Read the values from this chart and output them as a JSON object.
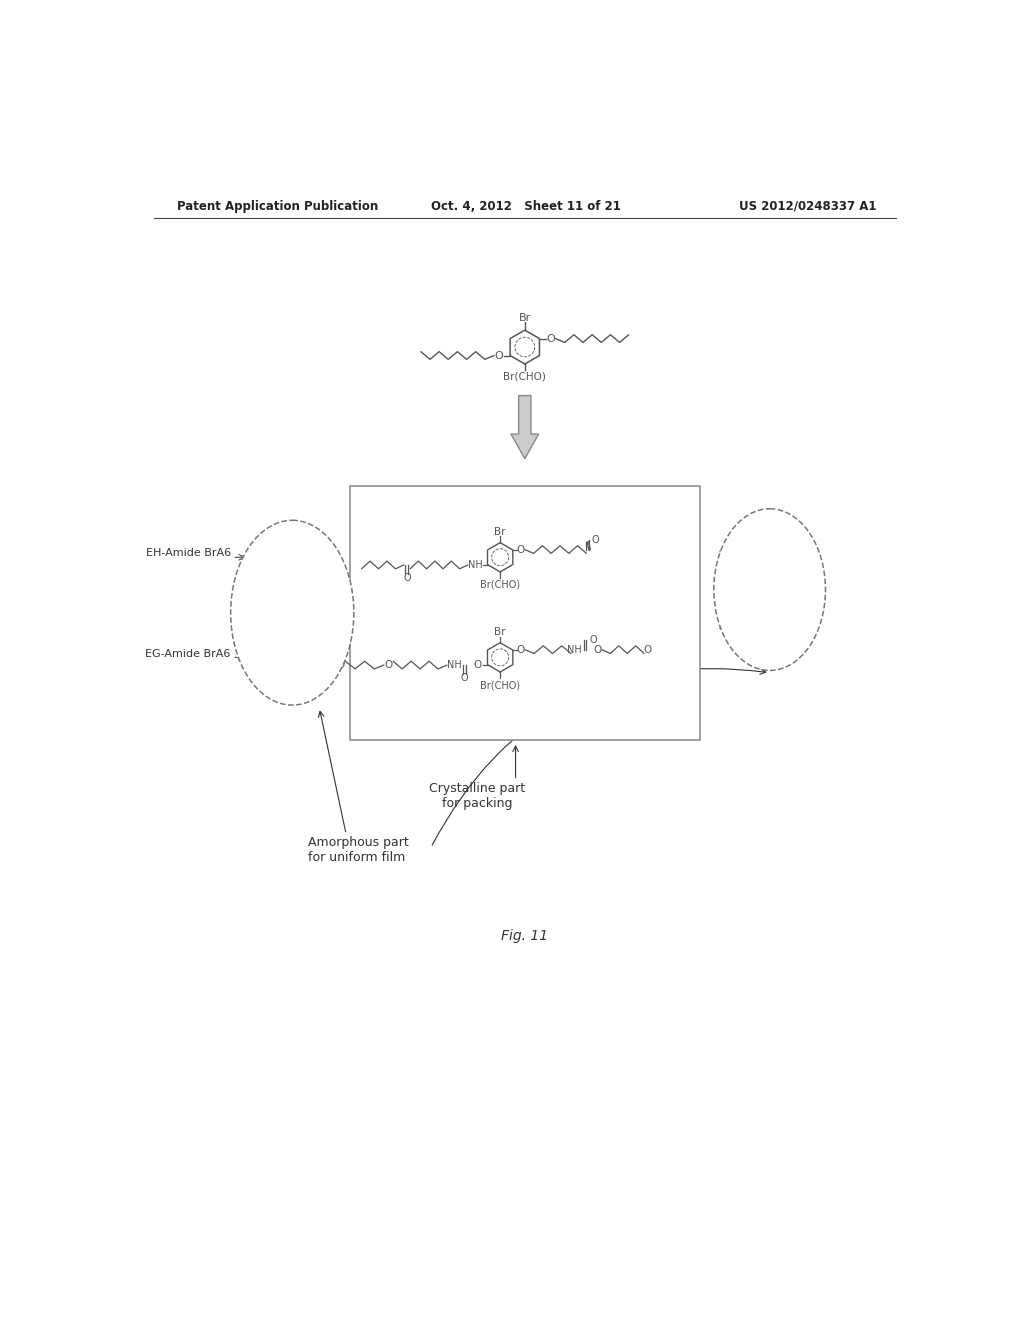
{
  "background_color": "#ffffff",
  "header_left": "Patent Application Publication",
  "header_mid": "Oct. 4, 2012   Sheet 11 of 21",
  "header_right": "US 2012/0248337 A1",
  "fig_label": "Fig. 11",
  "label_eh": "EH-Amide BrA6",
  "label_eg": "EG-Amide BrA6",
  "label_crystalline": "Crystalline part\nfor packing",
  "label_amorphous": "Amorphous part\nfor uniform film",
  "chem_color": "#555555",
  "text_color": "#333333",
  "arrow_fill": "#bbbbbb",
  "arrow_edge": "#777777",
  "box_edge": "#777777",
  "oval_edge": "#777777",
  "line_color": "#555555"
}
